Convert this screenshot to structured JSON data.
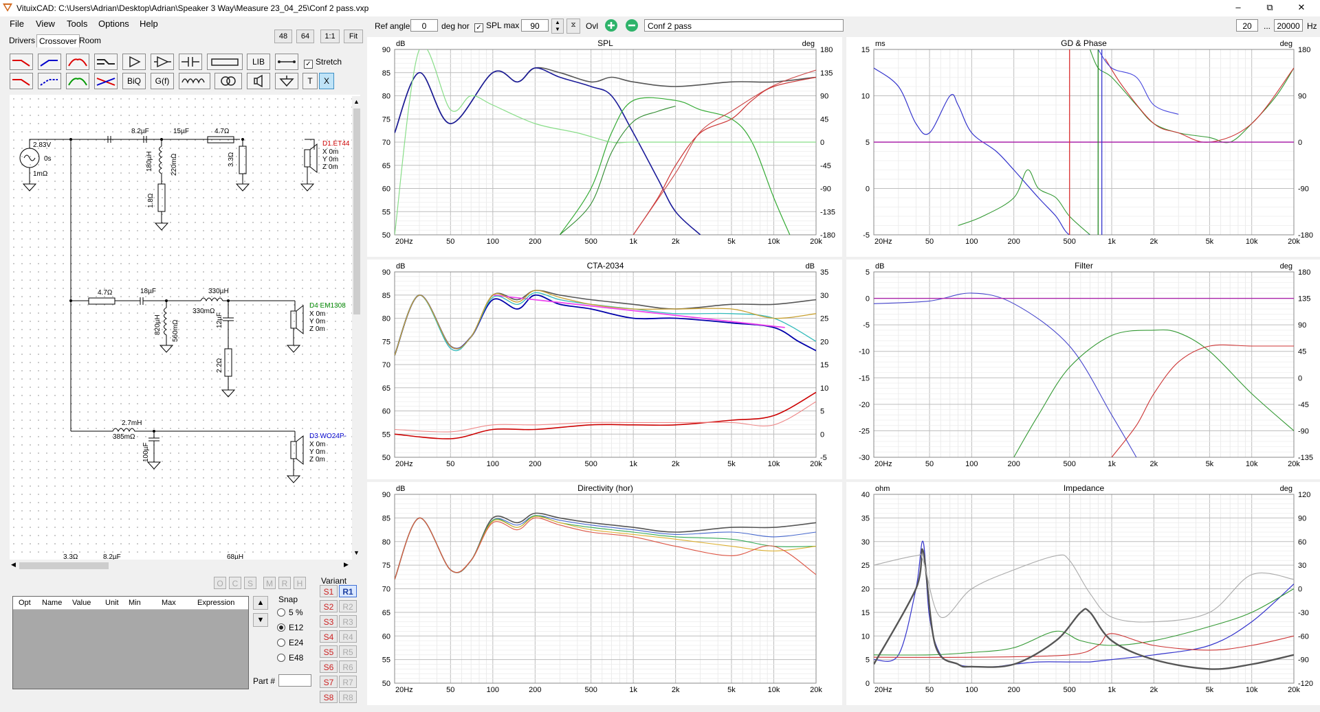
{
  "window": {
    "title": "VituixCAD: C:\\Users\\Adrian\\Desktop\\Adrian\\Speaker 3 Way\\Measure 23_04_25\\Conf 2 pass.vxp"
  },
  "menu": [
    "File",
    "View",
    "Tools",
    "Options",
    "Help"
  ],
  "tabs": [
    "Drivers",
    "Crossover",
    "Room"
  ],
  "zoom_buttons": [
    "48",
    "64",
    "1:1",
    "Fit"
  ],
  "toolbar": {
    "lib": "LIB",
    "biq": "BiQ",
    "gf": "G(f)",
    "t": "T",
    "x": "X",
    "stretch": "Stretch"
  },
  "top": {
    "ref_angle_label": "Ref angle",
    "ref_angle_value": "0",
    "deg_hor": "deg hor",
    "spl_max_label": "SPL max",
    "spl_max_value": "90",
    "ovl_label": "Ovl",
    "overlay_name": "Conf 2 pass",
    "freq_min": "20",
    "ellipsis": "...",
    "freq_max": "20000",
    "hz": "Hz"
  },
  "schematic": {
    "source": {
      "v": "2.83V",
      "t": "0s",
      "r": "1mΩ"
    },
    "labels": {
      "c1": "8.2µF",
      "c2": "15µF",
      "r1": "4.7Ω",
      "l1": "180µH",
      "l1r": "220mΩ",
      "r2": "1.8Ω",
      "r3": "3.3Ω",
      "r4": "4.7Ω",
      "c3": "18µF",
      "l2": "330µH",
      "l2r": "330mΩ",
      "l3": "820µH",
      "l3r": "560mΩ",
      "c4": "12µF",
      "r5": "2.2Ω",
      "l4": "2.7mH",
      "l4r": "385mΩ",
      "c5": "100µF",
      "cut1": "3.3Ω",
      "cut2": "8.2µF",
      "cut3": "68µH"
    },
    "drivers": [
      {
        "name": "D1.ET44",
        "x": "X 0m",
        "y": "Y 0m",
        "z": "Z 0m",
        "color": "#cc0000"
      },
      {
        "name": "D4 EM1308",
        "x": "X 0m",
        "y": "Y 0m",
        "z": "Z 0m",
        "color": "#008800"
      },
      {
        "name": "D3 WO24P-",
        "x": "X 0m",
        "y": "Y 0m",
        "z": "Z 0m",
        "color": "#0000cc"
      }
    ]
  },
  "ocsmrh": [
    "O",
    "C",
    "S",
    "M",
    "R",
    "H"
  ],
  "param_headers": [
    "Opt",
    "Name",
    "Value",
    "Unit",
    "Min",
    "Max",
    "Expression"
  ],
  "snap": {
    "title": "Snap",
    "options": [
      "5 %",
      "E12",
      "E24",
      "E48"
    ],
    "selected": "E12",
    "part_label": "Part #"
  },
  "variant": {
    "title": "Variant",
    "s": [
      "S1",
      "S2",
      "S3",
      "S4",
      "S5",
      "S6",
      "S7",
      "S8"
    ],
    "r": [
      "R1",
      "R2",
      "R3",
      "R4",
      "R5",
      "R6",
      "R7",
      "R8"
    ]
  },
  "charts": {
    "spl": {
      "title": "SPL",
      "lunit": "dB",
      "runit": "deg",
      "ly": [
        "90",
        "85",
        "80",
        "75",
        "70",
        "65",
        "60",
        "55",
        "50"
      ],
      "ry": [
        "180",
        "135",
        "90",
        "45",
        "0",
        "-45",
        "-90",
        "-135",
        "-180"
      ],
      "x": [
        "20Hz",
        "50",
        "100",
        "200",
        "500",
        "1k",
        "2k",
        "5k",
        "10k",
        "20k"
      ]
    },
    "gd": {
      "title": "GD & Phase",
      "lunit": "ms",
      "runit": "deg",
      "ly": [
        "15",
        "10",
        "5",
        "0",
        "-5"
      ],
      "ry": [
        "180",
        "90",
        "0",
        "-90",
        "-180"
      ],
      "x": [
        "20Hz",
        "50",
        "100",
        "200",
        "500",
        "1k",
        "2k",
        "5k",
        "10k",
        "20k"
      ]
    },
    "cta": {
      "title": "CTA-2034",
      "lunit": "dB",
      "runit": "dB",
      "ly": [
        "90",
        "85",
        "80",
        "75",
        "70",
        "65",
        "60",
        "55",
        "50"
      ],
      "ry": [
        "35",
        "30",
        "25",
        "20",
        "15",
        "10",
        "5",
        "0",
        "-5"
      ],
      "x": [
        "20Hz",
        "50",
        "100",
        "200",
        "500",
        "1k",
        "2k",
        "5k",
        "10k",
        "20k"
      ]
    },
    "filter": {
      "title": "Filter",
      "lunit": "dB",
      "runit": "deg",
      "ly": [
        "5",
        "0",
        "-5",
        "-10",
        "-15",
        "-20",
        "-25",
        "-30"
      ],
      "ry": [
        "180",
        "135",
        "90",
        "45",
        "0",
        "-45",
        "-90",
        "-135"
      ],
      "x": [
        "20Hz",
        "50",
        "100",
        "200",
        "500",
        "1k",
        "2k",
        "5k",
        "10k",
        "20k"
      ]
    },
    "dir": {
      "title": "Directivity (hor)",
      "lunit": "dB",
      "runit": "",
      "ly": [
        "90",
        "85",
        "80",
        "75",
        "70",
        "65",
        "60",
        "55",
        "50"
      ],
      "ry": [],
      "x": [
        "20Hz",
        "50",
        "100",
        "200",
        "500",
        "1k",
        "2k",
        "5k",
        "10k",
        "20k"
      ]
    },
    "imp": {
      "title": "Impedance",
      "lunit": "ohm",
      "runit": "deg",
      "ly": [
        "40",
        "35",
        "30",
        "25",
        "20",
        "15",
        "10",
        "5",
        "0"
      ],
      "ry": [
        "120",
        "90",
        "60",
        "30",
        "0",
        "-30",
        "-60",
        "-90",
        "-120"
      ],
      "x": [
        "20Hz",
        "50",
        "100",
        "200",
        "500",
        "1k",
        "2k",
        "5k",
        "10k",
        "20k"
      ]
    }
  },
  "chart_data": [
    {
      "type": "line",
      "title": "SPL",
      "xlabel": "",
      "ylabel": "dB",
      "xscale": "log",
      "xlim": [
        20,
        20000
      ],
      "ylim": [
        50,
        90
      ],
      "y2lim": [
        -180,
        180
      ],
      "series": [
        {
          "color": "#555555",
          "x": [
            20,
            30,
            50,
            100,
            150,
            200,
            300,
            500,
            700,
            1000,
            2000,
            5000,
            10000,
            20000
          ],
          "y": [
            72,
            85,
            74,
            85,
            83,
            86,
            85,
            83,
            84,
            83,
            82,
            83,
            83,
            84
          ]
        },
        {
          "color": "#1a1a99",
          "x": [
            20,
            30,
            50,
            100,
            150,
            200,
            300,
            500,
            700,
            1000,
            1500,
            2000,
            3000
          ],
          "y": [
            72,
            85,
            74,
            85,
            83,
            86,
            84,
            82,
            80,
            72,
            62,
            55,
            50
          ]
        },
        {
          "color": "#33aa33",
          "x": [
            300,
            500,
            700,
            1000,
            2000,
            3000,
            5000,
            7000,
            10000,
            13000
          ],
          "y": [
            50,
            60,
            72,
            79,
            79,
            77,
            75,
            70,
            58,
            50
          ]
        },
        {
          "color": "#cc3333",
          "x": [
            1000,
            1500,
            2000,
            3000,
            5000,
            7000,
            10000,
            20000
          ],
          "y": [
            50,
            58,
            65,
            72,
            75,
            79,
            82,
            84
          ]
        },
        {
          "color": "#88dd88",
          "x": [
            20,
            30,
            50,
            70,
            100,
            200,
            400,
            700,
            1000,
            3000,
            10000,
            20000
          ],
          "y": [
            50,
            90,
            77,
            80,
            78,
            74,
            72,
            70,
            70,
            70,
            70,
            70
          ]
        }
      ]
    },
    {
      "type": "line",
      "title": "GD & Phase",
      "xlabel": "",
      "ylabel": "ms",
      "xscale": "log",
      "xlim": [
        20,
        20000
      ],
      "ylim": [
        -5,
        15
      ],
      "y2lim": [
        -180,
        180
      ]
    },
    {
      "type": "line",
      "title": "CTA-2034",
      "xlabel": "",
      "ylabel": "dB",
      "xscale": "log",
      "xlim": [
        20,
        20000
      ],
      "ylim": [
        50,
        90
      ],
      "y2lim": [
        -5,
        35
      ],
      "series": [
        {
          "color": "#555555",
          "x": [
            20,
            30,
            50,
            70,
            100,
            150,
            200,
            300,
            500,
            1000,
            2000,
            5000,
            10000,
            20000
          ],
          "y": [
            72,
            85,
            74,
            76,
            85,
            84,
            86,
            85,
            84,
            83,
            82,
            83,
            83,
            84
          ]
        },
        {
          "color": "#0000aa",
          "x": [
            20,
            30,
            50,
            70,
            100,
            150,
            200,
            300,
            500,
            1000,
            2000,
            5000,
            10000,
            15000,
            20000
          ],
          "y": [
            72,
            85,
            74,
            76,
            84,
            82,
            85,
            83,
            82,
            80,
            80,
            79,
            78,
            75,
            73
          ]
        },
        {
          "color": "#cc0000",
          "x": [
            20,
            50,
            100,
            200,
            500,
            1000,
            2000,
            5000,
            10000,
            20000
          ],
          "y": [
            55,
            54,
            56,
            56,
            57,
            57,
            57,
            58,
            59,
            64
          ]
        },
        {
          "color": "#ee44ee",
          "x": [
            100,
            12000
          ],
          "y": [
            85,
            78
          ]
        }
      ]
    },
    {
      "type": "line",
      "title": "Filter",
      "xlabel": "",
      "ylabel": "dB",
      "xscale": "log",
      "xlim": [
        20,
        20000
      ],
      "ylim": [
        -30,
        5
      ],
      "y2lim": [
        -135,
        180
      ]
    },
    {
      "type": "line",
      "title": "Directivity (hor)",
      "xlabel": "",
      "ylabel": "dB",
      "xscale": "log",
      "xlim": [
        20,
        20000
      ],
      "ylim": [
        50,
        90
      ]
    },
    {
      "type": "line",
      "title": "Impedance",
      "xlabel": "",
      "ylabel": "ohm",
      "xscale": "log",
      "xlim": [
        20,
        20000
      ],
      "ylim": [
        0,
        40
      ],
      "y2lim": [
        -120,
        120
      ]
    }
  ]
}
